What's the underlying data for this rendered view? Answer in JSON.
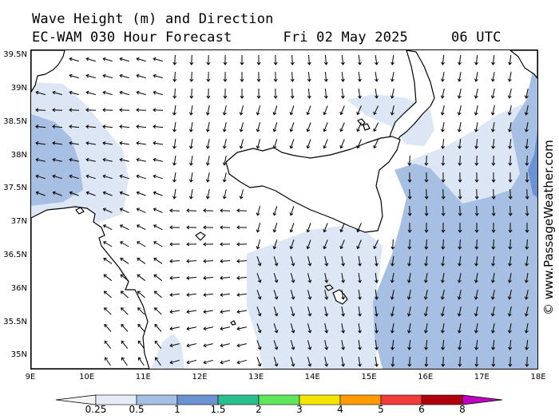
{
  "header": {
    "title": "Wave Height (m) and Direction",
    "forecast_label": "EC-WAM 030 Hour Forecast",
    "date": "Fri 02 May 2025",
    "time": "06 UTC"
  },
  "watermark": "© www.PassageWeather.com",
  "map": {
    "lon_range": [
      9,
      18
    ],
    "lat_range": [
      34.8,
      39.6
    ],
    "lat_ticks": [
      {
        "value": 39.5,
        "label": "39.5N"
      },
      {
        "value": 39.0,
        "label": "39N"
      },
      {
        "value": 38.5,
        "label": "38.5N"
      },
      {
        "value": 38.0,
        "label": "38N"
      },
      {
        "value": 37.5,
        "label": "37.5N"
      },
      {
        "value": 37.0,
        "label": "37N"
      },
      {
        "value": 36.5,
        "label": "36.5N"
      },
      {
        "value": 36.0,
        "label": "36N"
      },
      {
        "value": 35.5,
        "label": "35.5N"
      },
      {
        "value": 35.0,
        "label": "35N"
      }
    ],
    "lon_ticks": [
      {
        "value": 9,
        "label": "9E"
      },
      {
        "value": 10,
        "label": "10E"
      },
      {
        "value": 11,
        "label": "11E"
      },
      {
        "value": 12,
        "label": "12E"
      },
      {
        "value": 13,
        "label": "13E"
      },
      {
        "value": 14,
        "label": "14E"
      },
      {
        "value": 15,
        "label": "15E"
      },
      {
        "value": 16,
        "label": "16E"
      },
      {
        "value": 17,
        "label": "17E"
      },
      {
        "value": 18,
        "label": "18E"
      }
    ],
    "colors": {
      "sea_calm": "#ffffff",
      "band_025_05": "#dde6f5",
      "band_05_1": "#a6bfe3",
      "band_1_15": "#6c93d1",
      "land": "#ffffff",
      "coast": "#000000",
      "arrow": "#000000"
    }
  },
  "legend": {
    "bins": [
      {
        "label": "0.25",
        "color": "#e6ecf6"
      },
      {
        "label": "0.5",
        "color": "#a6bfe3"
      },
      {
        "label": "1",
        "color": "#6c93d1"
      },
      {
        "label": "1.5",
        "color": "#2bbf8f"
      },
      {
        "label": "2",
        "color": "#5fe65a"
      },
      {
        "label": "3",
        "color": "#f2e600"
      },
      {
        "label": "4",
        "color": "#ff9a00"
      },
      {
        "label": "5",
        "color": "#f23c3c"
      },
      {
        "label": "6",
        "color": "#b00010"
      },
      {
        "label": "8",
        "color": "#c000c0"
      }
    ]
  }
}
